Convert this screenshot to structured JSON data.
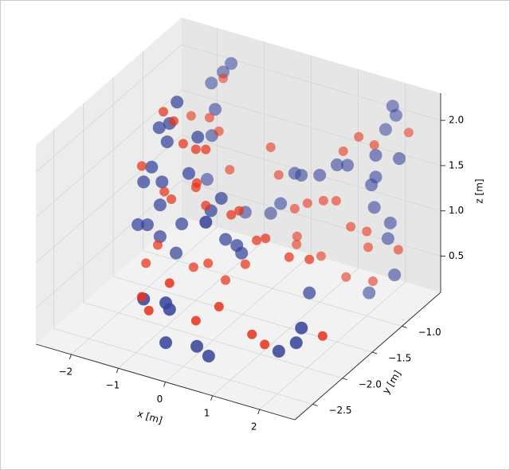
{
  "chart_data": {
    "type": "scatter3d",
    "xlabel": "x [m]",
    "ylabel": "y [m]",
    "zlabel": "z [m]",
    "xlim": [
      -2.75,
      2.75
    ],
    "ylim": [
      -2.8,
      -0.35
    ],
    "zlim": [
      0.1,
      2.3
    ],
    "xticks": [
      {
        "value": -2,
        "label": "−2"
      },
      {
        "value": -1,
        "label": "−1"
      },
      0,
      1,
      2
    ],
    "yticks": [
      {
        "value": -2.5,
        "label": "−2.5"
      },
      {
        "value": -2,
        "label": "−2.0"
      },
      {
        "value": -1.5,
        "label": "−1.5"
      },
      {
        "value": -1,
        "label": "−1.0"
      }
    ],
    "zticks": [
      0.5,
      {
        "value": 1,
        "label": "1.0"
      },
      1.5,
      {
        "value": 2,
        "label": "2.0"
      }
    ],
    "grid": true,
    "series": [
      {
        "color": "#36449a",
        "size": 8,
        "x": [
          -1.39,
          -1.56,
          -1.81,
          -1.3,
          -1.42,
          2.04,
          2.11,
          1.89,
          -1.46,
          -1.68,
          -1.51,
          -0.86,
          -1.49,
          -1.84,
          -2.01,
          -1.62,
          -1.05,
          -1.59,
          -0.36,
          -0.58,
          0.24,
          -0.78,
          -0.24,
          -0.03,
          0.27,
          0.41,
          0.8,
          1.17,
          1.39,
          1.99,
          2.49,
          1.99,
          1.9,
          1.96,
          2.3,
          2.25,
          -1.66,
          -1.93,
          -2.13,
          -1.2,
          -0.27,
          -0.03,
          0.07,
          -1.32,
          -1.66,
          1.51,
          1.85,
          2.39,
          -0.61,
          -0.53,
          -1.08,
          -0.61,
          0.05,
          0.3,
          1.79,
          2.16,
          2.27
        ],
        "y": [
          -0.595,
          -0.595,
          -0.595,
          -1.575,
          -0.84,
          -0.595,
          -0.595,
          -0.595,
          -1.575,
          -1.575,
          -1.575,
          -1.575,
          -0.84,
          -1.575,
          -1.575,
          -1.575,
          -1.575,
          -0.84,
          -1.575,
          -1.575,
          -2.31,
          -0.84,
          -0.84,
          -0.84,
          -0.84,
          -0.84,
          -0.84,
          -0.84,
          -0.84,
          -0.84,
          -0.84,
          -0.84,
          -0.84,
          -0.84,
          -0.84,
          -0.84,
          -1.575,
          -1.575,
          -1.575,
          -1.575,
          -1.575,
          -1.575,
          -1.575,
          -1.575,
          -1.575,
          -1.575,
          -0.84,
          -0.84,
          -2.31,
          -2.31,
          -2.31,
          -2.31,
          -2.31,
          -2.31,
          -2.31,
          -2.31,
          -2.31
        ],
        "z": [
          2.14,
          2.02,
          1.86,
          2.29,
          1.77,
          2.19,
          2.1,
          1.91,
          2.03,
          1.95,
          1.82,
          1.97,
          1.47,
          1.49,
          1.3,
          1.36,
          1.54,
          0.97,
          1.37,
          1.2,
          1.62,
          0.73,
          0.8,
          0.94,
          1.32,
          1.32,
          1.38,
          1.55,
          1.58,
          1.78,
          1.82,
          1.54,
          1.44,
          1.2,
          1.08,
          0.9,
          1.1,
          0.84,
          0.81,
          0.96,
          0.93,
          0.9,
          0.83,
          0.62,
          0.75,
          0.61,
          0.24,
          0.52,
          0.6,
          0.54,
          0.57,
          0.16,
          0.22,
          0.15,
          0.43,
          0.58,
          0.76
        ]
      },
      {
        "color": "#e8331c",
        "size": 6,
        "x": [
          -1.56,
          -1.59,
          -1.37,
          -1.93,
          -1.54,
          -1.34,
          -0.69,
          -0.9,
          -1.17,
          -0.24,
          1.3,
          1.63,
          2.38,
          1.96,
          -2.05,
          -1.57,
          -1.42,
          -0.9,
          -1.11,
          -0.07,
          0.27,
          0.54,
          0.88,
          1.15,
          1.46,
          -0.15,
          0.02,
          0.39,
          0.58,
          0.32,
          0.31,
          1.08,
          1.51,
          0.83,
          -1.71,
          -1.96,
          -0.53,
          -1.12,
          -0.97,
          0.03,
          0.52,
          -0.95,
          -0.64,
          -0.27,
          0.15,
          1.22,
          1.49,
          2.72,
          1.83,
          1.93,
          1.36,
          2.47,
          1.8,
          -0.88,
          -0.69
        ],
        "y": [
          -0.595,
          -1.575,
          -1.575,
          -0.84,
          -0.84,
          -0.84,
          -1.575,
          -1.575,
          -1.575,
          -0.84,
          -0.84,
          -0.84,
          -0.595,
          -0.84,
          -1.575,
          -1.575,
          -1.575,
          -1.575,
          -0.84,
          -0.84,
          -0.84,
          -0.84,
          -0.84,
          -0.84,
          -0.84,
          -1.575,
          -1.575,
          -1.575,
          -1.575,
          -0.84,
          -0.84,
          -1.575,
          -1.575,
          -0.84,
          -1.575,
          -1.575,
          -2.31,
          -2.31,
          -2.31,
          -2.31,
          -2.31,
          -1.575,
          -1.575,
          -1.575,
          -1.575,
          -2.31,
          -2.31,
          -2.31,
          -0.84,
          -0.84,
          -0.84,
          -0.84,
          -0.84,
          -1.575,
          -1.575
        ],
        "z": [
          1.95,
          2.14,
          2.07,
          1.62,
          1.66,
          1.54,
          1.86,
          1.83,
          1.85,
          1.53,
          1.72,
          1.93,
          1.95,
          1.89,
          1.47,
          1.26,
          1.2,
          1.41,
          1.15,
          1.25,
          0.93,
          1.03,
          1.11,
          1.15,
          0.91,
          1.22,
          1.29,
          1.02,
          1.07,
          0.63,
          0.54,
          0.94,
          0.98,
          0.49,
          0.65,
          0.41,
          0.83,
          0.59,
          0.46,
          0.5,
          0.73,
          0.52,
          0.61,
          0.48,
          0.72,
          0.53,
          0.46,
          0.74,
          0.74,
          0.38,
          0.34,
          0.81,
          0.91,
          1.46,
          1.24
        ]
      }
    ]
  }
}
